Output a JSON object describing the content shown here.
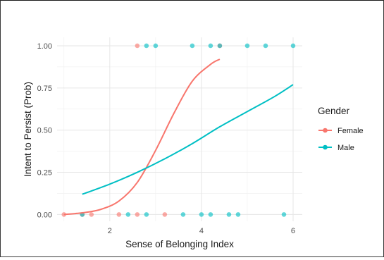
{
  "chart_data": {
    "type": "scatter",
    "xlabel": "Sense of Belonging Index",
    "ylabel": "Intent to Persist (Prob)",
    "xlim": [
      0.85,
      6.2
    ],
    "ylim": [
      -0.04,
      1.05
    ],
    "x_ticks": [
      2,
      4,
      6
    ],
    "y_ticks": [
      0.0,
      0.25,
      0.5,
      0.75,
      1.0
    ],
    "x_tick_labels": [
      "2",
      "4",
      "6"
    ],
    "y_tick_labels": [
      "0.00",
      "0.25",
      "0.50",
      "0.75",
      "1.00"
    ],
    "grid": true,
    "legend": {
      "title": "Gender",
      "placement": "right",
      "entries": [
        "Female",
        "Male"
      ]
    },
    "series": [
      {
        "name": "Female",
        "color": "#F8766D",
        "points": [
          [
            2.6,
            1
          ],
          [
            4.4,
            1
          ],
          [
            1.0,
            0
          ],
          [
            1.4,
            0
          ],
          [
            1.6,
            0
          ],
          [
            2.2,
            0
          ],
          [
            2.6,
            0
          ],
          [
            3.2,
            0
          ]
        ],
        "curve": [
          [
            1.0,
            0.0
          ],
          [
            1.4,
            0.01
          ],
          [
            1.8,
            0.03
          ],
          [
            2.2,
            0.08
          ],
          [
            2.6,
            0.19
          ],
          [
            3.0,
            0.38
          ],
          [
            3.4,
            0.6
          ],
          [
            3.8,
            0.79
          ],
          [
            4.2,
            0.89
          ],
          [
            4.4,
            0.92
          ]
        ]
      },
      {
        "name": "Male",
        "color": "#00BFC4",
        "points": [
          [
            2.8,
            1
          ],
          [
            3.0,
            1
          ],
          [
            3.8,
            1
          ],
          [
            4.2,
            1
          ],
          [
            4.4,
            1
          ],
          [
            5.0,
            1
          ],
          [
            5.4,
            1
          ],
          [
            6.0,
            1
          ],
          [
            1.4,
            0
          ],
          [
            2.4,
            0
          ],
          [
            2.8,
            0
          ],
          [
            3.6,
            0
          ],
          [
            4.0,
            0
          ],
          [
            4.2,
            0
          ],
          [
            4.6,
            0
          ],
          [
            4.8,
            0
          ],
          [
            5.8,
            0
          ]
        ],
        "curve": [
          [
            1.4,
            0.12
          ],
          [
            2.0,
            0.18
          ],
          [
            2.6,
            0.25
          ],
          [
            3.2,
            0.33
          ],
          [
            3.8,
            0.42
          ],
          [
            4.4,
            0.52
          ],
          [
            5.0,
            0.61
          ],
          [
            5.6,
            0.7
          ],
          [
            6.0,
            0.77
          ]
        ]
      }
    ]
  }
}
